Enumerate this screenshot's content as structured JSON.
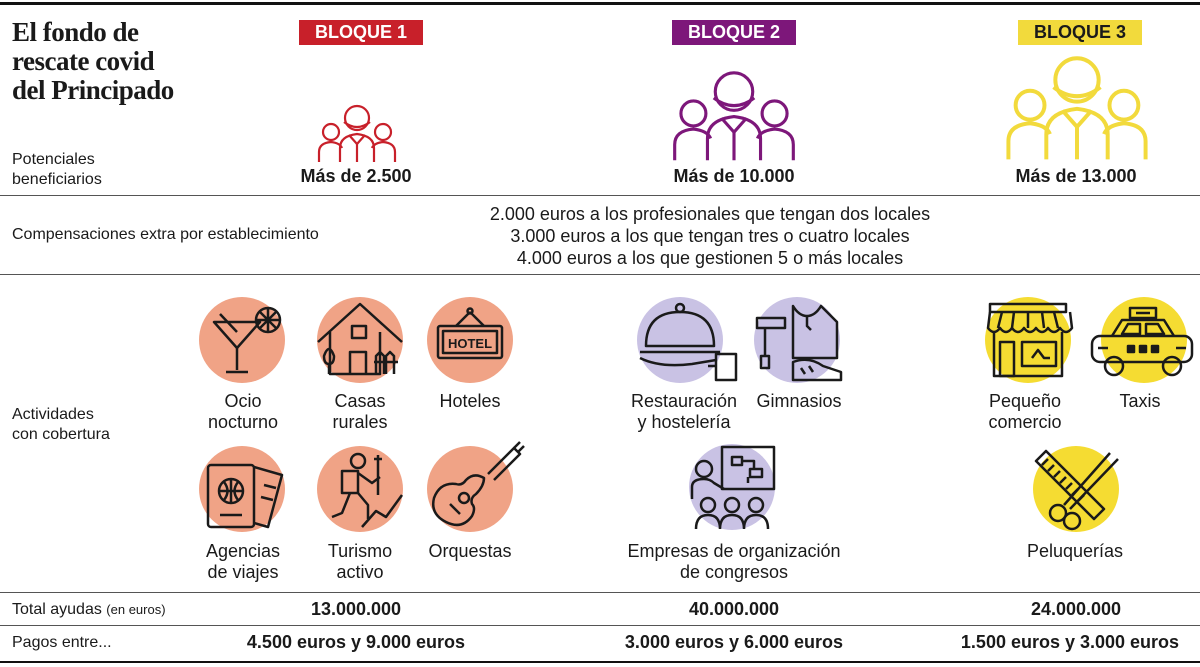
{
  "title": [
    "El fondo de",
    "rescate covid",
    "del Principado"
  ],
  "blocks": [
    {
      "label": "BLOQUE 1",
      "color": "#c8202a",
      "beneficiaries": "Más de 2.500",
      "total": "13.000.000",
      "payments": "4.500 euros y 9.000 euros"
    },
    {
      "label": "BLOQUE 2",
      "color": "#7d177a",
      "beneficiaries": "Más de 10.000",
      "total": "40.000.000",
      "payments": "3.000 euros y 6.000 euros"
    },
    {
      "label": "BLOQUE 3",
      "color": "#f2da3c",
      "beneficiaries": "Más de 13.000",
      "total": "24.000.000",
      "payments": "1.500 euros y 3.000 euros"
    }
  ],
  "rows": {
    "beneficiaries": [
      "Potenciales",
      "beneficiarios"
    ],
    "compensation": "Compensaciones extra por establecimiento",
    "activities": [
      "Actividades",
      "con cobertura"
    ],
    "total": "Total ayudas",
    "total_unit": "(en euros)",
    "payments": "Pagos entre..."
  },
  "compensation_lines": [
    "2.000 euros a los profesionales que tengan dos locales",
    "3.000 euros a los que tengan tres o cuatro locales",
    "4.000 euros a los que gestionen 5 o más locales"
  ],
  "activities": {
    "bloque1": [
      {
        "lines": [
          "Ocio",
          "nocturno"
        ],
        "icon": "cocktail-icon"
      },
      {
        "lines": [
          "Casas",
          "rurales"
        ],
        "icon": "rural-house-icon"
      },
      {
        "lines": [
          "Hoteles"
        ],
        "icon": "hotel-sign-icon",
        "sign": "HOTEL"
      },
      {
        "lines": [
          "Agencias",
          "de viajes"
        ],
        "icon": "passport-ticket-icon"
      },
      {
        "lines": [
          "Turismo",
          "activo"
        ],
        "icon": "hiker-icon"
      },
      {
        "lines": [
          "Orquestas"
        ],
        "icon": "guitar-icon"
      }
    ],
    "bloque2": [
      {
        "lines": [
          "Restauración",
          "y hostelería"
        ],
        "icon": "food-tray-icon"
      },
      {
        "lines": [
          "Gimnasios"
        ],
        "icon": "gym-icon"
      },
      {
        "lines": [
          "Empresas de organización",
          "de congresos"
        ],
        "icon": "conference-icon"
      }
    ],
    "bloque3": [
      {
        "lines": [
          "Pequeño",
          "comercio"
        ],
        "icon": "shop-icon"
      },
      {
        "lines": [
          "Taxis"
        ],
        "icon": "taxi-icon"
      },
      {
        "lines": [
          "Peluquerías"
        ],
        "icon": "scissors-comb-icon"
      }
    ]
  },
  "colors": {
    "salmon": "#f0a386",
    "lavender": "#c9c2e4",
    "yellow": "#f5dc32"
  }
}
